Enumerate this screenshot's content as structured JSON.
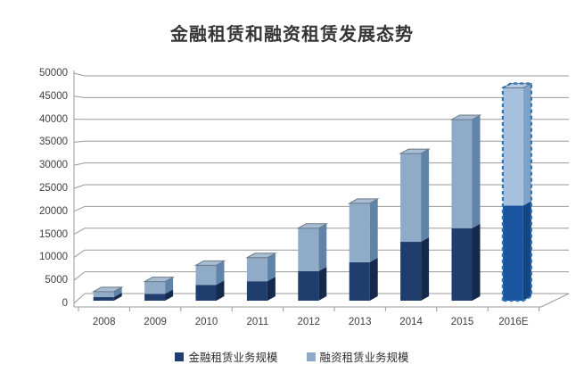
{
  "chart_data": {
    "type": "bar",
    "subtype": "stacked-3d-column",
    "title": "金融租赁和融资租赁发展态势",
    "categories": [
      "2008",
      "2009",
      "2010",
      "2011",
      "2012",
      "2013",
      "2014",
      "2015",
      "2016E"
    ],
    "series": [
      {
        "name": "金融租赁业务规模",
        "color": "#1F3E6E",
        "values": [
          800,
          1500,
          3500,
          4300,
          6500,
          8500,
          13000,
          16000,
          21000
        ]
      },
      {
        "name": "融资租赁业务规模",
        "color": "#8FABC8",
        "values": [
          1200,
          2700,
          4300,
          5200,
          9500,
          13000,
          19500,
          24000,
          26000
        ]
      }
    ],
    "totals": [
      2000,
      4200,
      7800,
      9500,
      16000,
      21500,
      32500,
      40000,
      47000
    ],
    "estimated_category": "2016E",
    "estimate_outline_color": "#2E74B5",
    "ylim": [
      0,
      50000
    ],
    "y_step": 5000,
    "y_ticks": [
      "50000",
      "45000",
      "40000",
      "35000",
      "30000",
      "25000",
      "20000",
      "15000",
      "10000",
      "5000",
      "0"
    ],
    "xlabel": "",
    "ylabel": "",
    "grid": true,
    "legend_position": "bottom",
    "gridline_color": "#9a9a9a"
  }
}
